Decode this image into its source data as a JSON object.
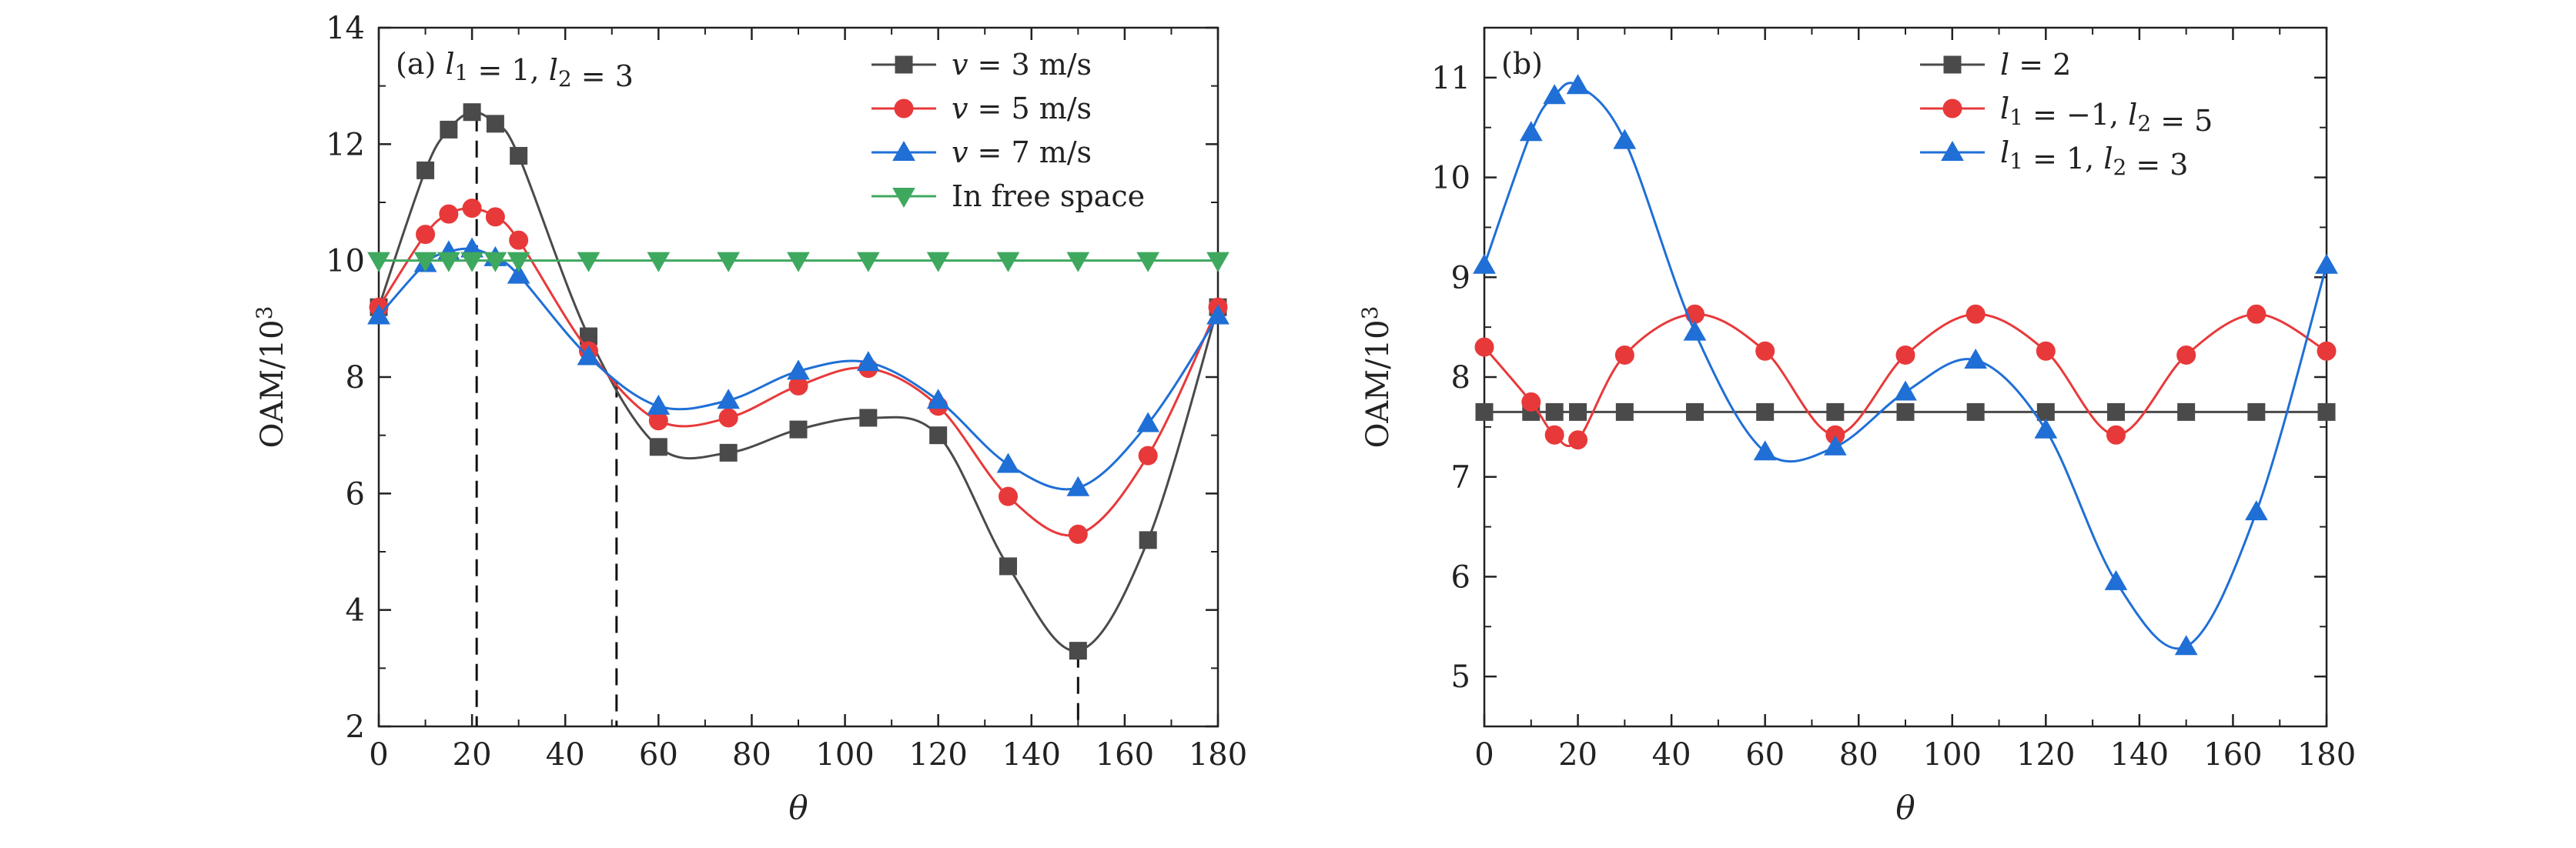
{
  "chart_data": [
    {
      "type": "line",
      "panel_label": "(a) l₁ = 1, l₂ = 3",
      "xlabel": "θ",
      "ylabel": "OAM/10³",
      "xlim": [
        0,
        180
      ],
      "ylim": [
        2,
        14
      ],
      "xticks": [
        "0",
        "20",
        "40",
        "60",
        "80",
        "100",
        "120",
        "140",
        "160",
        "180"
      ],
      "yticks": [
        "2",
        "4",
        "6",
        "8",
        "10",
        "12",
        "14"
      ],
      "legend_position": "top-right",
      "vlines": [
        21,
        51,
        150
      ],
      "series": [
        {
          "name": "v = 3 m/s",
          "color": "#4a4a4a",
          "marker": "square",
          "x": [
            0,
            10,
            15,
            20,
            25,
            30,
            45,
            60,
            75,
            90,
            105,
            120,
            135,
            150,
            165,
            180
          ],
          "y": [
            9.2,
            11.55,
            12.25,
            12.55,
            12.35,
            11.8,
            8.7,
            6.8,
            6.7,
            7.1,
            7.3,
            7.0,
            4.75,
            3.3,
            5.2,
            9.2
          ]
        },
        {
          "name": "v = 5 m/s",
          "color": "#e8393a",
          "marker": "circle",
          "x": [
            0,
            10,
            15,
            20,
            25,
            30,
            45,
            60,
            75,
            90,
            105,
            120,
            135,
            150,
            165,
            180
          ],
          "y": [
            9.2,
            10.45,
            10.8,
            10.9,
            10.75,
            10.35,
            8.45,
            7.25,
            7.3,
            7.85,
            8.15,
            7.5,
            5.95,
            5.3,
            6.65,
            9.2
          ]
        },
        {
          "name": "v = 7 m/s",
          "color": "#1f6fd6",
          "marker": "triangle-up",
          "x": [
            0,
            10,
            15,
            20,
            25,
            30,
            45,
            60,
            75,
            90,
            105,
            120,
            135,
            150,
            165,
            180
          ],
          "y": [
            9.05,
            9.95,
            10.15,
            10.2,
            10.05,
            9.75,
            8.35,
            7.5,
            7.6,
            8.1,
            8.25,
            7.6,
            6.5,
            6.1,
            7.2,
            9.05
          ]
        },
        {
          "name": "In free space",
          "color": "#3fa85f",
          "marker": "triangle-down",
          "x": [
            0,
            10,
            15,
            20,
            25,
            30,
            45,
            60,
            75,
            90,
            105,
            120,
            135,
            150,
            165,
            180
          ],
          "y": [
            10,
            10,
            10,
            10,
            10,
            10,
            10,
            10,
            10,
            10,
            10,
            10,
            10,
            10,
            10,
            10
          ]
        }
      ]
    },
    {
      "type": "line",
      "panel_label": "(b)",
      "xlabel": "θ",
      "ylabel": "OAM/10³",
      "xlim": [
        0,
        180
      ],
      "ylim": [
        4.5,
        11.5
      ],
      "xticks": [
        "0",
        "20",
        "40",
        "60",
        "80",
        "100",
        "120",
        "140",
        "160",
        "180"
      ],
      "yticks": [
        "5",
        "6",
        "7",
        "8",
        "9",
        "10",
        "11"
      ],
      "legend_position": "top-right",
      "series": [
        {
          "name": "l = 2",
          "color": "#4a4a4a",
          "marker": "square",
          "x": [
            0,
            10,
            15,
            20,
            30,
            45,
            60,
            75,
            90,
            105,
            120,
            135,
            150,
            165,
            180
          ],
          "y": [
            7.65,
            7.65,
            7.65,
            7.65,
            7.65,
            7.65,
            7.65,
            7.65,
            7.65,
            7.65,
            7.65,
            7.65,
            7.65,
            7.65,
            7.65
          ]
        },
        {
          "name": "l₁ = −1, l₂ = 5",
          "color": "#e8393a",
          "marker": "circle",
          "x": [
            0,
            10,
            15,
            20,
            30,
            45,
            60,
            75,
            90,
            105,
            120,
            135,
            150,
            165,
            180
          ],
          "y": [
            8.3,
            7.75,
            7.42,
            7.37,
            8.22,
            8.63,
            8.26,
            7.42,
            8.22,
            8.63,
            8.26,
            7.42,
            8.22,
            8.63,
            8.26
          ]
        },
        {
          "name": "l₁ = 1, l₂ = 3",
          "color": "#1f6fd6",
          "marker": "triangle-up",
          "x": [
            0,
            10,
            15,
            20,
            30,
            45,
            60,
            75,
            90,
            105,
            120,
            135,
            150,
            165,
            180
          ],
          "y": [
            9.12,
            10.45,
            10.82,
            10.92,
            10.37,
            8.45,
            7.25,
            7.3,
            7.85,
            8.17,
            7.47,
            5.95,
            5.3,
            6.65,
            9.12
          ]
        }
      ]
    }
  ]
}
